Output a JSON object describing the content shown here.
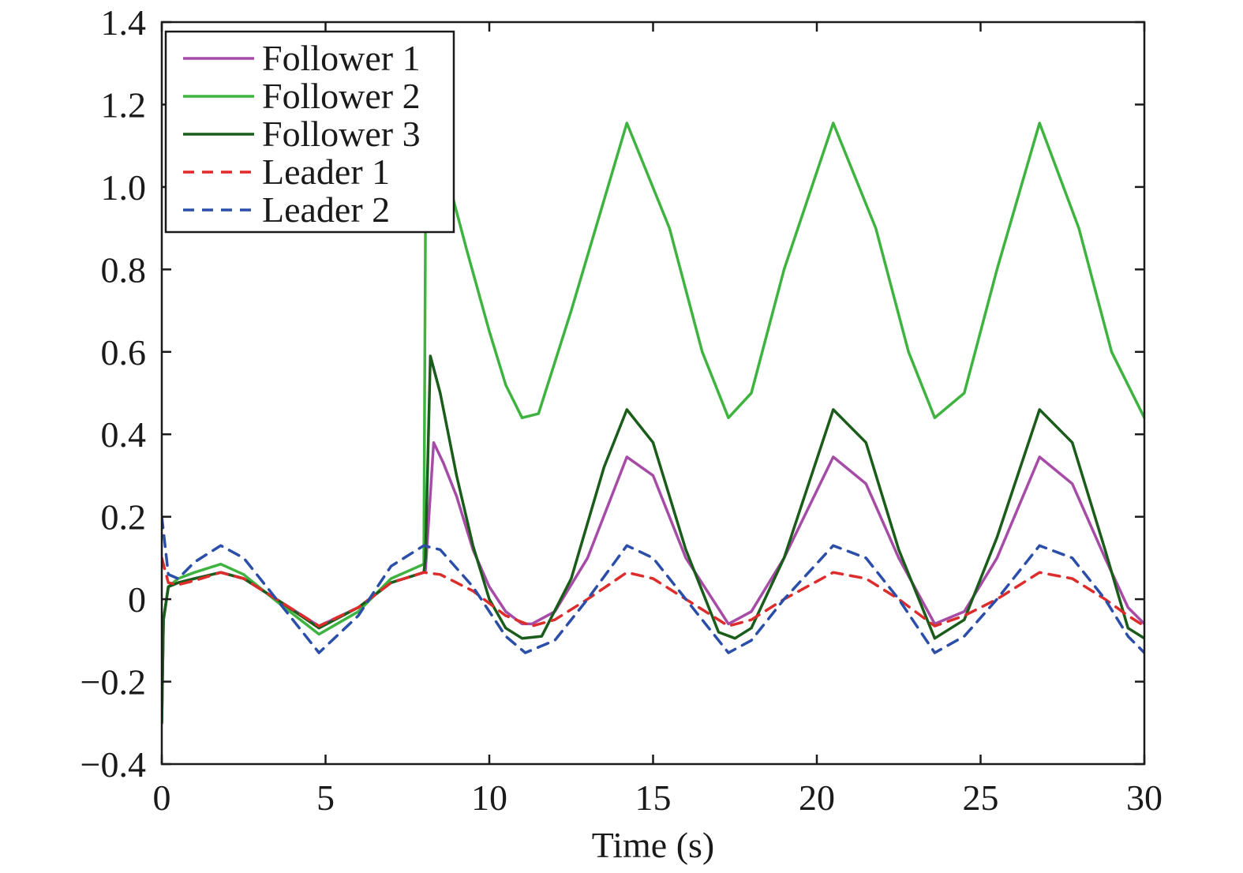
{
  "chart_data": {
    "type": "line",
    "title": "",
    "xlabel": "Time (s)",
    "ylabel": "",
    "xlim": [
      0,
      30
    ],
    "ylim": [
      -0.4,
      1.4
    ],
    "xticks": [
      0,
      5,
      10,
      15,
      20,
      25,
      30
    ],
    "xtick_labels": [
      "0",
      "5",
      "10",
      "15",
      "20",
      "25",
      "30"
    ],
    "yticks": [
      -0.4,
      -0.2,
      0,
      0.2,
      0.4,
      0.6,
      0.8,
      1.0,
      1.2,
      1.4
    ],
    "ytick_labels": [
      "−0.4",
      "−0.2",
      "0",
      "0.2",
      "0.4",
      "0.6",
      "0.8",
      "1.0",
      "1.2",
      "1.4"
    ],
    "grid": false,
    "legend_position": "top-left",
    "series": [
      {
        "name": "Follower 1",
        "color": "#a64ca6",
        "style": "solid",
        "x": [
          0,
          0.05,
          0.2,
          0.5,
          1.0,
          1.8,
          2.5,
          3.5,
          4.8,
          6.0,
          7.0,
          8.0,
          8.05,
          8.3,
          8.6,
          9.0,
          9.5,
          10.0,
          10.5,
          11.0,
          11.3,
          12.0,
          13.0,
          14.2,
          15.0,
          16.0,
          17.3,
          18.0,
          19.0,
          20.5,
          21.5,
          22.5,
          23.6,
          24.5,
          25.5,
          26.8,
          27.8,
          28.8,
          29.5,
          30.0
        ],
        "y": [
          -0.3,
          -0.05,
          0.03,
          0.04,
          0.05,
          0.065,
          0.05,
          0.0,
          -0.065,
          -0.02,
          0.04,
          0.065,
          0.07,
          0.38,
          0.33,
          0.25,
          0.12,
          0.03,
          -0.03,
          -0.06,
          -0.06,
          -0.03,
          0.1,
          0.345,
          0.3,
          0.1,
          -0.06,
          -0.03,
          0.1,
          0.345,
          0.28,
          0.1,
          -0.06,
          -0.03,
          0.1,
          0.345,
          0.28,
          0.1,
          -0.02,
          -0.06
        ]
      },
      {
        "name": "Follower 2",
        "color": "#3fb33f",
        "style": "solid",
        "x": [
          0,
          0.05,
          0.2,
          0.5,
          1.0,
          1.8,
          2.5,
          3.5,
          4.8,
          6.0,
          7.0,
          8.0,
          8.05,
          8.1,
          8.3,
          8.8,
          9.3,
          10.0,
          10.5,
          11.0,
          11.5,
          12.5,
          14.2,
          15.5,
          16.5,
          17.3,
          18.0,
          19.0,
          20.5,
          21.8,
          22.8,
          23.6,
          24.5,
          25.5,
          26.8,
          28.0,
          29.0,
          30.0
        ],
        "y": [
          -0.3,
          -0.05,
          0.03,
          0.05,
          0.065,
          0.085,
          0.06,
          -0.005,
          -0.085,
          -0.03,
          0.05,
          0.085,
          0.9,
          1.02,
          1.05,
          1.0,
          0.85,
          0.65,
          0.52,
          0.44,
          0.45,
          0.7,
          1.155,
          0.9,
          0.6,
          0.44,
          0.5,
          0.8,
          1.155,
          0.9,
          0.6,
          0.44,
          0.5,
          0.8,
          1.155,
          0.9,
          0.6,
          0.44
        ]
      },
      {
        "name": "Follower 3",
        "color": "#1a5c1a",
        "style": "solid",
        "x": [
          0,
          0.05,
          0.2,
          0.5,
          1.0,
          1.8,
          2.5,
          3.5,
          4.8,
          6.0,
          7.0,
          8.0,
          8.05,
          8.2,
          8.5,
          9.0,
          9.5,
          10.0,
          10.5,
          11.0,
          11.6,
          12.5,
          13.5,
          14.2,
          15.0,
          16.0,
          17.0,
          17.5,
          18.0,
          19.0,
          20.5,
          21.5,
          22.5,
          23.6,
          24.5,
          25.5,
          26.8,
          27.8,
          28.8,
          29.5,
          30.0
        ],
        "y": [
          -0.3,
          -0.05,
          0.03,
          0.04,
          0.05,
          0.065,
          0.05,
          0.0,
          -0.07,
          -0.02,
          0.04,
          0.065,
          0.1,
          0.59,
          0.5,
          0.3,
          0.13,
          0.0,
          -0.07,
          -0.095,
          -0.09,
          0.05,
          0.32,
          0.46,
          0.38,
          0.12,
          -0.08,
          -0.095,
          -0.07,
          0.1,
          0.46,
          0.38,
          0.12,
          -0.095,
          -0.05,
          0.15,
          0.46,
          0.38,
          0.12,
          -0.07,
          -0.095
        ]
      },
      {
        "name": "Leader 1",
        "color": "#dd2c2c",
        "style": "dashed",
        "x": [
          0,
          0.2,
          0.5,
          1.0,
          1.8,
          2.5,
          3.5,
          4.8,
          6.0,
          7.0,
          8.0,
          8.5,
          9.5,
          10.5,
          11.3,
          12.0,
          13.0,
          14.2,
          15.0,
          16.0,
          17.3,
          18.0,
          19.0,
          20.5,
          21.5,
          22.5,
          23.6,
          24.5,
          25.5,
          26.8,
          27.8,
          28.8,
          29.5,
          30.0
        ],
        "y": [
          0.1,
          0.04,
          0.035,
          0.045,
          0.065,
          0.05,
          0.0,
          -0.065,
          -0.02,
          0.04,
          0.065,
          0.06,
          0.02,
          -0.04,
          -0.065,
          -0.05,
          0.0,
          0.065,
          0.05,
          0.0,
          -0.065,
          -0.05,
          0.0,
          0.065,
          0.05,
          0.0,
          -0.065,
          -0.04,
          0.0,
          0.065,
          0.05,
          0.0,
          -0.04,
          -0.065
        ]
      },
      {
        "name": "Leader 2",
        "color": "#2b4ea8",
        "style": "dashed",
        "x": [
          0,
          0.2,
          0.5,
          1.0,
          1.8,
          2.5,
          3.5,
          4.8,
          6.0,
          7.0,
          8.0,
          8.5,
          9.5,
          10.5,
          11.1,
          12.0,
          13.0,
          14.2,
          15.0,
          16.0,
          17.3,
          18.0,
          19.0,
          20.5,
          21.5,
          22.5,
          23.6,
          24.5,
          25.5,
          26.8,
          27.8,
          28.8,
          29.5,
          30.0
        ],
        "y": [
          0.2,
          0.06,
          0.05,
          0.09,
          0.13,
          0.1,
          0.0,
          -0.13,
          -0.04,
          0.08,
          0.13,
          0.12,
          0.03,
          -0.09,
          -0.13,
          -0.1,
          0.0,
          0.13,
          0.1,
          0.0,
          -0.13,
          -0.1,
          0.0,
          0.13,
          0.1,
          0.0,
          -0.13,
          -0.09,
          0.0,
          0.13,
          0.1,
          0.0,
          -0.09,
          -0.13
        ]
      }
    ]
  }
}
